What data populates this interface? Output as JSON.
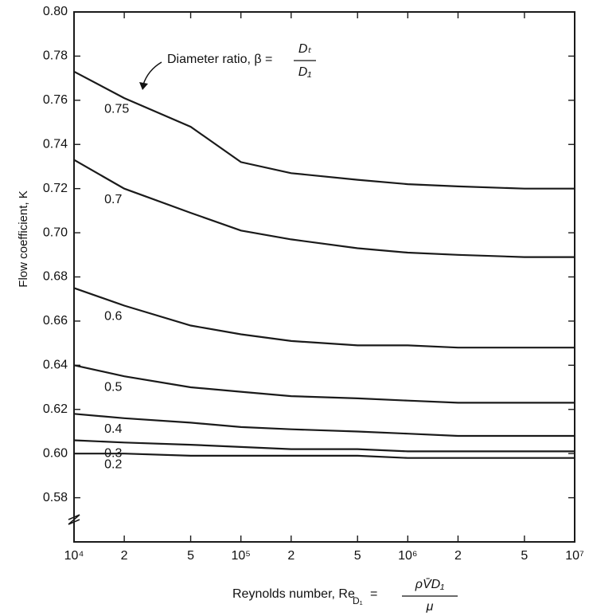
{
  "chart_data": {
    "type": "line",
    "y_label": "Flow coefficient, K",
    "x_label": {
      "text": "Reynolds number, Re",
      "subscript": "D₁",
      "equals": "=",
      "numerator": "ρV̄D₁",
      "denominator": "μ"
    },
    "annotation": {
      "text": "Diameter ratio, β =",
      "numerator": "Dₜ",
      "denominator": "D₁"
    },
    "x": [
      10000,
      20000,
      50000,
      100000,
      200000,
      500000,
      1000000,
      2000000,
      5000000,
      10000000
    ],
    "xscale": "log",
    "xlim": [
      10000,
      10000000
    ],
    "xticks": [
      {
        "value": 10000,
        "label": "10⁴"
      },
      {
        "value": 20000,
        "label": "2"
      },
      {
        "value": 50000,
        "label": "5"
      },
      {
        "value": 100000,
        "label": "10⁵"
      },
      {
        "value": 200000,
        "label": "2"
      },
      {
        "value": 500000,
        "label": "5"
      },
      {
        "value": 1000000,
        "label": "10⁶"
      },
      {
        "value": 2000000,
        "label": "2"
      },
      {
        "value": 5000000,
        "label": "5"
      },
      {
        "value": 10000000,
        "label": "10⁷"
      }
    ],
    "ylim": [
      0.56,
      0.8
    ],
    "yticks": [
      {
        "value": 0.58,
        "label": "0.58"
      },
      {
        "value": 0.6,
        "label": "0.60"
      },
      {
        "value": 0.62,
        "label": "0.62"
      },
      {
        "value": 0.64,
        "label": "0.64"
      },
      {
        "value": 0.66,
        "label": "0.66"
      },
      {
        "value": 0.68,
        "label": "0.68"
      },
      {
        "value": 0.7,
        "label": "0.70"
      },
      {
        "value": 0.72,
        "label": "0.72"
      },
      {
        "value": 0.74,
        "label": "0.74"
      },
      {
        "value": 0.76,
        "label": "0.76"
      },
      {
        "value": 0.78,
        "label": "0.78"
      },
      {
        "value": 0.8,
        "label": "0.80"
      }
    ],
    "color": "#1a1a1a",
    "series": [
      {
        "name": "0.75",
        "values": [
          0.773,
          0.761,
          0.748,
          0.732,
          0.727,
          0.724,
          0.722,
          0.721,
          0.72,
          0.72
        ]
      },
      {
        "name": "0.7",
        "values": [
          0.733,
          0.72,
          0.709,
          0.701,
          0.697,
          0.693,
          0.691,
          0.69,
          0.689,
          0.689
        ]
      },
      {
        "name": "0.6",
        "values": [
          0.675,
          0.667,
          0.658,
          0.654,
          0.651,
          0.649,
          0.649,
          0.648,
          0.648,
          0.648
        ]
      },
      {
        "name": "0.5",
        "values": [
          0.64,
          0.635,
          0.63,
          0.628,
          0.626,
          0.625,
          0.624,
          0.623,
          0.623,
          0.623
        ]
      },
      {
        "name": "0.4",
        "values": [
          0.618,
          0.616,
          0.614,
          0.612,
          0.611,
          0.61,
          0.609,
          0.608,
          0.608,
          0.608
        ]
      },
      {
        "name": "0.3",
        "values": [
          0.606,
          0.605,
          0.604,
          0.603,
          0.602,
          0.602,
          0.601,
          0.601,
          0.601,
          0.601
        ]
      },
      {
        "name": "0.2",
        "values": [
          0.6,
          0.6,
          0.599,
          0.599,
          0.599,
          0.599,
          0.598,
          0.598,
          0.598,
          0.598
        ]
      }
    ]
  }
}
